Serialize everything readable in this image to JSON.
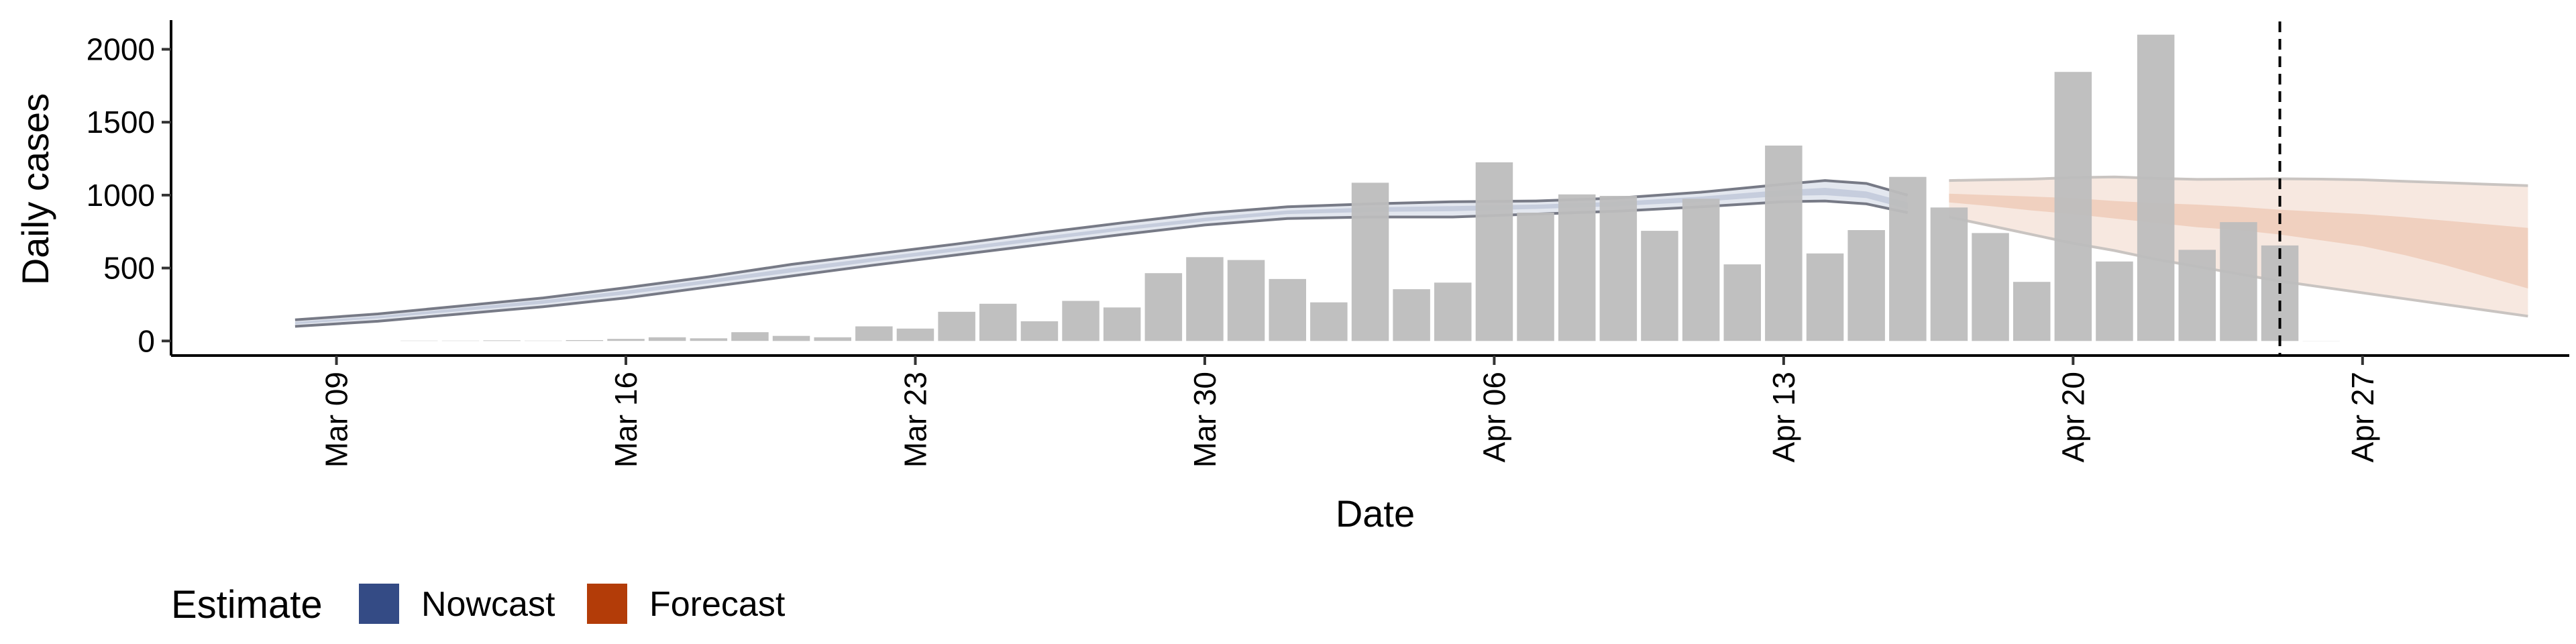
{
  "chart_data": {
    "type": "bar",
    "title": "",
    "xlabel": "Date",
    "ylabel": "Daily cases",
    "ylim": [
      -100,
      2200
    ],
    "yticks": [
      0,
      500,
      1000,
      1500,
      2000
    ],
    "x_tick_labels": [
      "Mar 09",
      "Mar 16",
      "Mar 23",
      "Mar 30",
      "Apr 06",
      "Apr 13",
      "Apr 20",
      "Apr 27"
    ],
    "x_tick_dates": [
      "2020-03-09",
      "2020-03-16",
      "2020-03-23",
      "2020-03-30",
      "2020-04-06",
      "2020-04-13",
      "2020-04-20",
      "2020-04-27"
    ],
    "xlim": [
      "2020-03-05",
      "2020-05-02"
    ],
    "grid": false,
    "legend_position": "bottom-left",
    "legend": {
      "title": "Estimate",
      "items": [
        {
          "label": "Nowcast",
          "color": "#344b85"
        },
        {
          "label": "Forecast",
          "color": "#b33c08"
        }
      ]
    },
    "colors": {
      "bars": "#bdbdbd",
      "nowcast_band_outer": "#e3e7ef",
      "nowcast_band_inner": "#c6cddd",
      "nowcast_band_edge": "#777a86",
      "forecast_band_outer": "#f7e8e0",
      "forecast_band_inner": "#f0d0bf",
      "forecast_band_edge": "#c9c4c1",
      "vline": "#000000"
    },
    "vline_date": "2020-04-25",
    "bars": {
      "dates": [
        "2020-03-11",
        "2020-03-12",
        "2020-03-13",
        "2020-03-14",
        "2020-03-15",
        "2020-03-16",
        "2020-03-17",
        "2020-03-18",
        "2020-03-19",
        "2020-03-20",
        "2020-03-21",
        "2020-03-22",
        "2020-03-23",
        "2020-03-24",
        "2020-03-25",
        "2020-03-26",
        "2020-03-27",
        "2020-03-28",
        "2020-03-29",
        "2020-03-30",
        "2020-03-31",
        "2020-04-01",
        "2020-04-02",
        "2020-04-03",
        "2020-04-04",
        "2020-04-05",
        "2020-04-06",
        "2020-04-07",
        "2020-04-08",
        "2020-04-09",
        "2020-04-10",
        "2020-04-11",
        "2020-04-12",
        "2020-04-13",
        "2020-04-14",
        "2020-04-15",
        "2020-04-16",
        "2020-04-17",
        "2020-04-18",
        "2020-04-19",
        "2020-04-20",
        "2020-04-21",
        "2020-04-22",
        "2020-04-23",
        "2020-04-24",
        "2020-04-25",
        "2020-04-26"
      ],
      "values": [
        2,
        2,
        4,
        2,
        6,
        14,
        25,
        18,
        60,
        35,
        25,
        100,
        85,
        200,
        255,
        135,
        275,
        230,
        465,
        575,
        555,
        425,
        265,
        1085,
        355,
        400,
        1225,
        880,
        1005,
        995,
        755,
        975,
        525,
        1340,
        600,
        760,
        1125,
        915,
        740,
        405,
        1845,
        545,
        2100,
        625,
        815,
        655,
        1
      ]
    },
    "nowcast": {
      "dates": [
        "2020-03-08",
        "2020-03-10",
        "2020-03-12",
        "2020-03-14",
        "2020-03-16",
        "2020-03-18",
        "2020-03-20",
        "2020-03-22",
        "2020-03-24",
        "2020-03-26",
        "2020-03-28",
        "2020-03-30",
        "2020-04-01",
        "2020-04-03",
        "2020-04-05",
        "2020-04-07",
        "2020-04-09",
        "2020-04-11",
        "2020-04-13",
        "2020-04-14",
        "2020-04-15",
        "2020-04-16"
      ],
      "upper90": [
        145,
        185,
        240,
        295,
        365,
        440,
        525,
        595,
        665,
        740,
        810,
        875,
        920,
        940,
        955,
        960,
        980,
        1020,
        1075,
        1100,
        1080,
        1000
      ],
      "upper50": [
        130,
        170,
        225,
        280,
        345,
        420,
        500,
        570,
        640,
        712,
        782,
        845,
        895,
        915,
        925,
        935,
        955,
        990,
        1035,
        1050,
        1025,
        950
      ],
      "lower50": [
        115,
        155,
        205,
        255,
        320,
        395,
        470,
        545,
        615,
        687,
        758,
        820,
        870,
        885,
        890,
        905,
        925,
        955,
        995,
        1000,
        980,
        905
      ],
      "lower90": [
        100,
        135,
        185,
        235,
        295,
        370,
        445,
        520,
        590,
        660,
        730,
        795,
        840,
        850,
        850,
        870,
        890,
        920,
        955,
        960,
        940,
        880
      ]
    },
    "forecast": {
      "dates": [
        "2020-04-17",
        "2020-04-18",
        "2020-04-19",
        "2020-04-20",
        "2020-04-21",
        "2020-04-22",
        "2020-04-23",
        "2020-04-24",
        "2020-04-25",
        "2020-04-26",
        "2020-04-27",
        "2020-04-28",
        "2020-04-29",
        "2020-04-30",
        "2020-05-01"
      ],
      "upper90": [
        1100,
        1105,
        1110,
        1120,
        1125,
        1115,
        1108,
        1110,
        1112,
        1110,
        1105,
        1095,
        1085,
        1075,
        1065
      ],
      "upper50": [
        1010,
        1000,
        990,
        980,
        960,
        945,
        935,
        920,
        900,
        885,
        870,
        850,
        825,
        800,
        775
      ],
      "lower50": [
        950,
        925,
        895,
        870,
        840,
        810,
        780,
        760,
        730,
        690,
        650,
        590,
        520,
        440,
        360
      ],
      "lower90": [
        850,
        790,
        730,
        670,
        620,
        560,
        510,
        460,
        410,
        370,
        330,
        290,
        250,
        210,
        170
      ]
    }
  }
}
